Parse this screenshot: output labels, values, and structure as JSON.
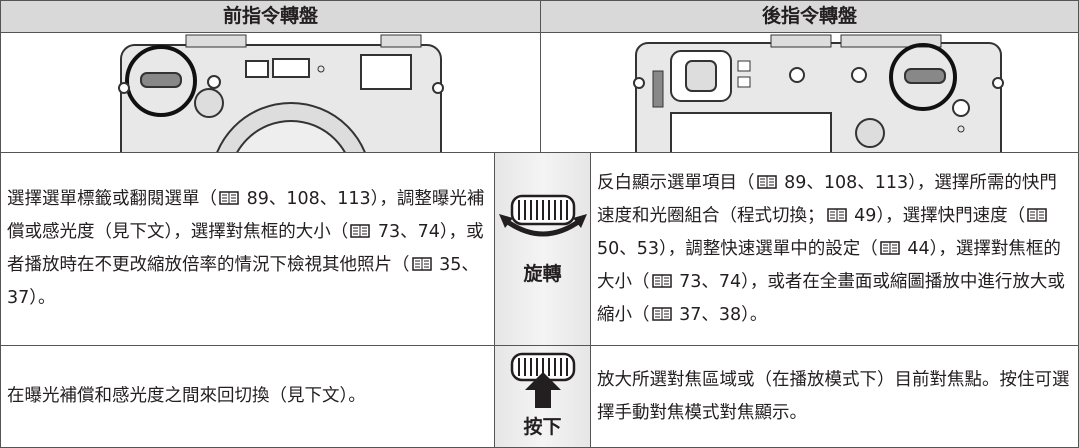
{
  "header": {
    "front": "前指令轉盤",
    "rear": "後指令轉盤"
  },
  "rows": [
    {
      "front": [
        "選擇選單標籤或翻閱選單（",
        " 89、108、113），調整曝光補償或感光度（見下文），選擇對焦框的大小（",
        " 73、74），或者播放時在不更改縮放倍率的情況下檢視其他照片（",
        " 35、37）。"
      ],
      "action": "旋轉",
      "rear": [
        "反白顯示選單項目（",
        " 89、108、113），選擇所需的快門速度和光圈組合（程式切換；",
        " 49），選擇快門速度（",
        " 50、53），調整快速選單中的設定（",
        " 44），選擇對焦框的大小（",
        " 73、74），或者在全畫面或縮圖播放中進行放大或縮小（",
        " 37、38）。"
      ]
    },
    {
      "front": [
        "在曝光補償和感光度之間來回切換（見下文）。"
      ],
      "action": "按下",
      "rear": [
        "放大所選對焦區域或（在播放模式下）目前對焦點。按住可選擇手動對焦模式對焦顯示。"
      ]
    }
  ]
}
